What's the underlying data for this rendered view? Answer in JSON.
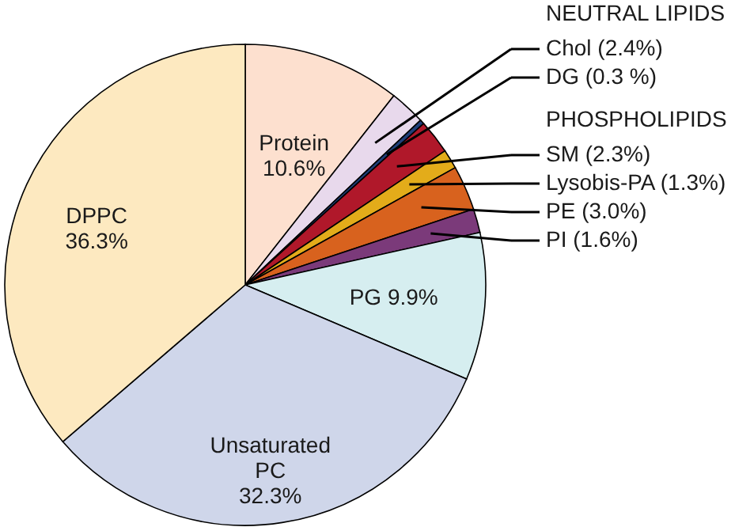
{
  "chart_data": {
    "type": "pie",
    "categories": [
      "Protein",
      "Chol",
      "DG",
      "SM",
      "Lysobis-PA",
      "PE",
      "PI",
      "PG",
      "Unsaturated PC",
      "DPPC"
    ],
    "values": [
      10.6,
      2.4,
      0.3,
      2.3,
      1.3,
      3.0,
      1.6,
      9.9,
      32.3,
      36.3
    ],
    "colors": [
      "#fde0cf",
      "#e8d9ec",
      "#1f3f7a",
      "#b0182a",
      "#e3ac1a",
      "#d8621e",
      "#7b3a7a",
      "#d6eef0",
      "#cfd6ea",
      "#fde9c0"
    ],
    "value_labels": [
      "10.6%",
      "(2.4%)",
      "(0.3 %)",
      "(2.3%)",
      "(1.3%)",
      "(3.0%)",
      "(1.6%)",
      "9.9%",
      "32.3%",
      "36.3%"
    ],
    "annotations": [
      "NEUTRAL LIPIDS",
      "PHOSPHOLIPIDS"
    ],
    "legend": "top right"
  }
}
